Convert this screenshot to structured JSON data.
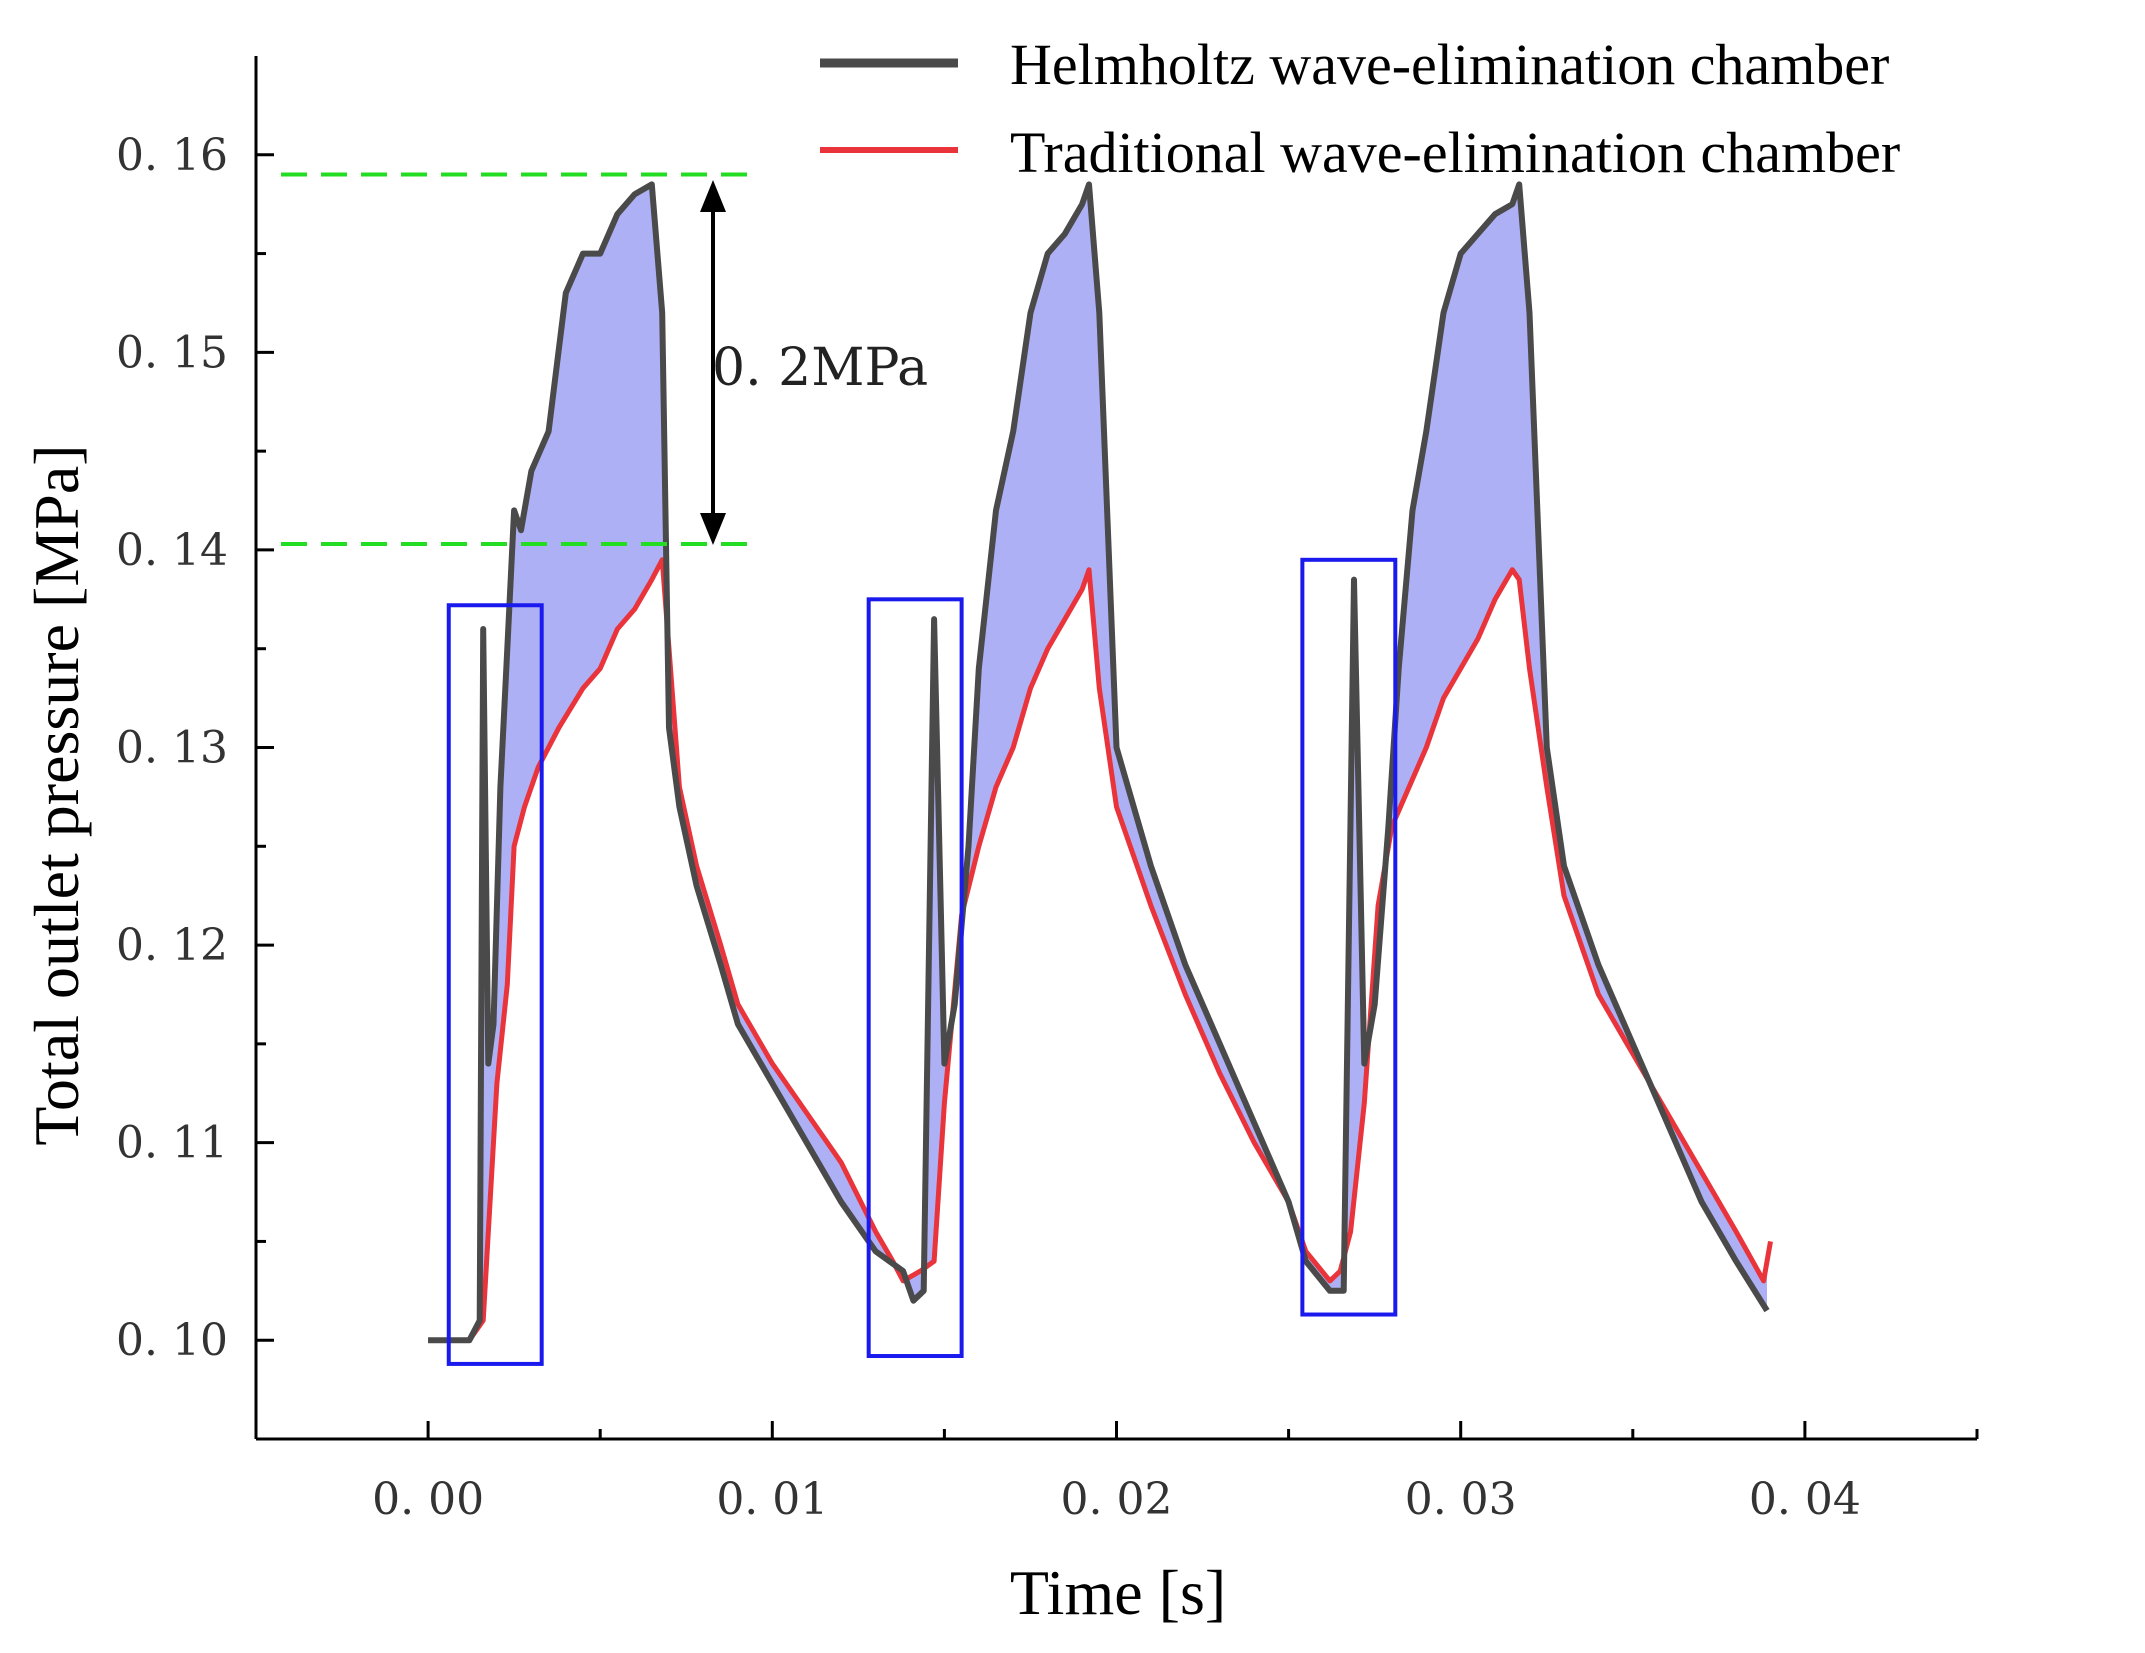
{
  "chart_data": {
    "type": "line",
    "title": "",
    "xlabel": "Time [s]",
    "ylabel": "Total outlet pressure [MPa]",
    "xlim": [
      -0.005,
      0.045
    ],
    "ylim": [
      0.095,
      0.165
    ],
    "x_ticks": [
      0.0,
      0.01,
      0.02,
      0.03,
      0.04
    ],
    "x_tick_labels": [
      "0. 00",
      "0. 01",
      "0. 02",
      "0. 03",
      "0. 04"
    ],
    "y_ticks": [
      0.1,
      0.11,
      0.12,
      0.13,
      0.14,
      0.15,
      0.16
    ],
    "y_tick_labels": [
      "0. 10",
      "0. 11",
      "0. 12",
      "0. 13",
      "0. 14",
      "0. 15",
      "0. 16"
    ],
    "grid": false,
    "legend_position": "top-right",
    "series": [
      {
        "name": "Helmholtz wave-elimination chamber",
        "color": "#4a4a4a",
        "x": [
          0.0,
          0.0012,
          0.0015,
          0.0016,
          0.00175,
          0.0019,
          0.0021,
          0.0023,
          0.0025,
          0.0027,
          0.003,
          0.0035,
          0.004,
          0.0045,
          0.005,
          0.0055,
          0.006,
          0.0065,
          0.0068,
          0.007,
          0.0073,
          0.0078,
          0.0085,
          0.009,
          0.01,
          0.011,
          0.012,
          0.013,
          0.0138,
          0.0141,
          0.0144,
          0.0147,
          0.015,
          0.0153,
          0.0157,
          0.016,
          0.0165,
          0.017,
          0.0175,
          0.018,
          0.0185,
          0.019,
          0.0192,
          0.0195,
          0.02,
          0.021,
          0.022,
          0.023,
          0.024,
          0.025,
          0.0255,
          0.0262,
          0.0266,
          0.0269,
          0.0272,
          0.0275,
          0.0279,
          0.0282,
          0.0286,
          0.029,
          0.0295,
          0.03,
          0.0305,
          0.031,
          0.0315,
          0.0317,
          0.032,
          0.0325,
          0.033,
          0.034,
          0.035,
          0.036,
          0.037,
          0.038,
          0.0389
        ],
        "y": [
          0.1,
          0.1,
          0.101,
          0.136,
          0.114,
          0.116,
          0.128,
          0.135,
          0.142,
          0.141,
          0.144,
          0.146,
          0.153,
          0.155,
          0.155,
          0.157,
          0.158,
          0.1585,
          0.152,
          0.131,
          0.127,
          0.123,
          0.119,
          0.116,
          0.113,
          0.11,
          0.107,
          0.1045,
          0.1035,
          0.102,
          0.1025,
          0.1365,
          0.114,
          0.117,
          0.125,
          0.134,
          0.142,
          0.146,
          0.152,
          0.155,
          0.156,
          0.1575,
          0.1585,
          0.152,
          0.13,
          0.124,
          0.119,
          0.115,
          0.111,
          0.107,
          0.104,
          0.1025,
          0.1025,
          0.1385,
          0.114,
          0.117,
          0.126,
          0.134,
          0.142,
          0.146,
          0.152,
          0.155,
          0.156,
          0.157,
          0.1575,
          0.1585,
          0.152,
          0.13,
          0.124,
          0.119,
          0.115,
          0.111,
          0.107,
          0.104,
          0.1015
        ]
      },
      {
        "name": "Traditional wave-elimination chamber",
        "color": "#e8343a",
        "x": [
          0.0,
          0.0012,
          0.0016,
          0.002,
          0.0023,
          0.0025,
          0.0028,
          0.0032,
          0.0038,
          0.0045,
          0.005,
          0.0055,
          0.006,
          0.0065,
          0.0068,
          0.007,
          0.0073,
          0.0078,
          0.0085,
          0.009,
          0.01,
          0.011,
          0.012,
          0.013,
          0.0135,
          0.0138,
          0.0143,
          0.0147,
          0.015,
          0.0155,
          0.016,
          0.0165,
          0.017,
          0.0175,
          0.018,
          0.0185,
          0.019,
          0.0192,
          0.0195,
          0.02,
          0.021,
          0.022,
          0.023,
          0.024,
          0.025,
          0.0255,
          0.0262,
          0.0265,
          0.0268,
          0.0272,
          0.0276,
          0.028,
          0.0285,
          0.029,
          0.0295,
          0.03,
          0.0305,
          0.031,
          0.0315,
          0.0317,
          0.032,
          0.0325,
          0.033,
          0.034,
          0.035,
          0.036,
          0.037,
          0.038,
          0.0388,
          0.039
        ],
        "y": [
          0.1,
          0.1,
          0.101,
          0.113,
          0.118,
          0.125,
          0.127,
          0.129,
          0.131,
          0.133,
          0.134,
          0.136,
          0.137,
          0.1385,
          0.1395,
          0.135,
          0.128,
          0.124,
          0.12,
          0.117,
          0.114,
          0.1115,
          0.109,
          0.1055,
          0.104,
          0.103,
          0.1035,
          0.104,
          0.112,
          0.1215,
          0.125,
          0.128,
          0.13,
          0.133,
          0.135,
          0.1365,
          0.138,
          0.139,
          0.133,
          0.127,
          0.122,
          0.1175,
          0.1135,
          0.11,
          0.107,
          0.1045,
          0.103,
          0.1035,
          0.1055,
          0.112,
          0.122,
          0.126,
          0.128,
          0.13,
          0.1325,
          0.134,
          0.1355,
          0.1375,
          0.139,
          0.1385,
          0.134,
          0.128,
          0.1225,
          0.1175,
          0.1145,
          0.1115,
          0.1085,
          0.1055,
          0.103,
          0.105
        ]
      }
    ],
    "annotations": {
      "arrow_text": "0. 2MPa",
      "dashed_levels": [
        0.159,
        0.1403
      ],
      "dashed_color": "#22dd22",
      "fill_color": "#aeb0f5",
      "box_color": "#1a1aee",
      "boxes": [
        {
          "x0": 0.0006,
          "x1": 0.0033,
          "y0": 0.0988,
          "y1": 0.1372
        },
        {
          "x0": 0.0128,
          "x1": 0.0155,
          "y0": 0.0992,
          "y1": 0.1375
        },
        {
          "x0": 0.0254,
          "x1": 0.0281,
          "y0": 0.1013,
          "y1": 0.1395
        }
      ]
    }
  }
}
